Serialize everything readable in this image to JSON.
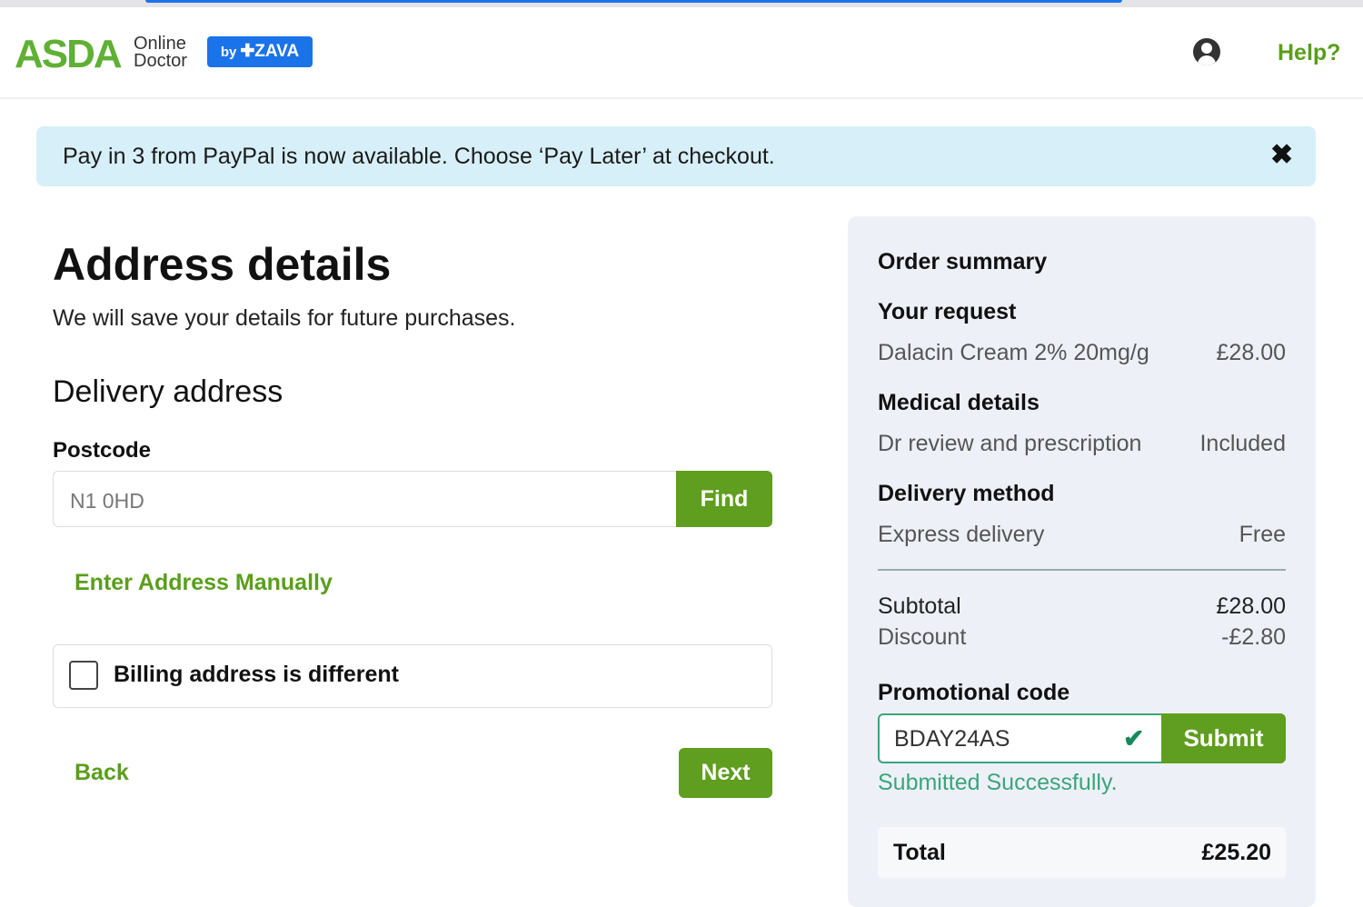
{
  "header": {
    "logo_brand": "ASDA",
    "logo_line1": "Online",
    "logo_line2": "Doctor",
    "partner_by": "by",
    "partner": "ZAVA",
    "help": "Help?",
    "account_icon": "user-circle-icon"
  },
  "banner": {
    "text": "Pay in 3 from PayPal is now available. Choose ‘Pay Later’ at checkout.",
    "close": "✖"
  },
  "main": {
    "title": "Address details",
    "subtitle": "We will save your details for future purchases.",
    "section": "Delivery address",
    "postcode_label": "Postcode",
    "postcode_value": "N1 0HD",
    "find": "Find",
    "manual": "Enter Address Manually",
    "billing": "Billing address is different",
    "billing_checked": false,
    "back": "Back",
    "next": "Next"
  },
  "summary": {
    "title": "Order summary",
    "request_label": "Your request",
    "request_item": "Dalacin Cream 2% 20mg/g",
    "request_price": "£28.00",
    "medical_label": "Medical details",
    "medical_item": "Dr review and prescription",
    "medical_price": "Included",
    "delivery_label": "Delivery method",
    "delivery_item": "Express delivery",
    "delivery_price": "Free",
    "subtotal_label": "Subtotal",
    "subtotal": "£28.00",
    "discount_label": "Discount",
    "discount": "-£2.80",
    "promo_label": "Promotional code",
    "promo_value": "BDAY24AS",
    "submit": "Submit",
    "promo_status": "Submitted Successfully.",
    "total_label": "Total",
    "total": "£25.20"
  },
  "colors": {
    "brand_green": "#5fb033",
    "button_green": "#5f9e1e",
    "success": "#3aa57a",
    "zava_blue": "#1a73e8",
    "banner_bg": "#d7eff8",
    "panel_bg": "#edf1f7"
  }
}
